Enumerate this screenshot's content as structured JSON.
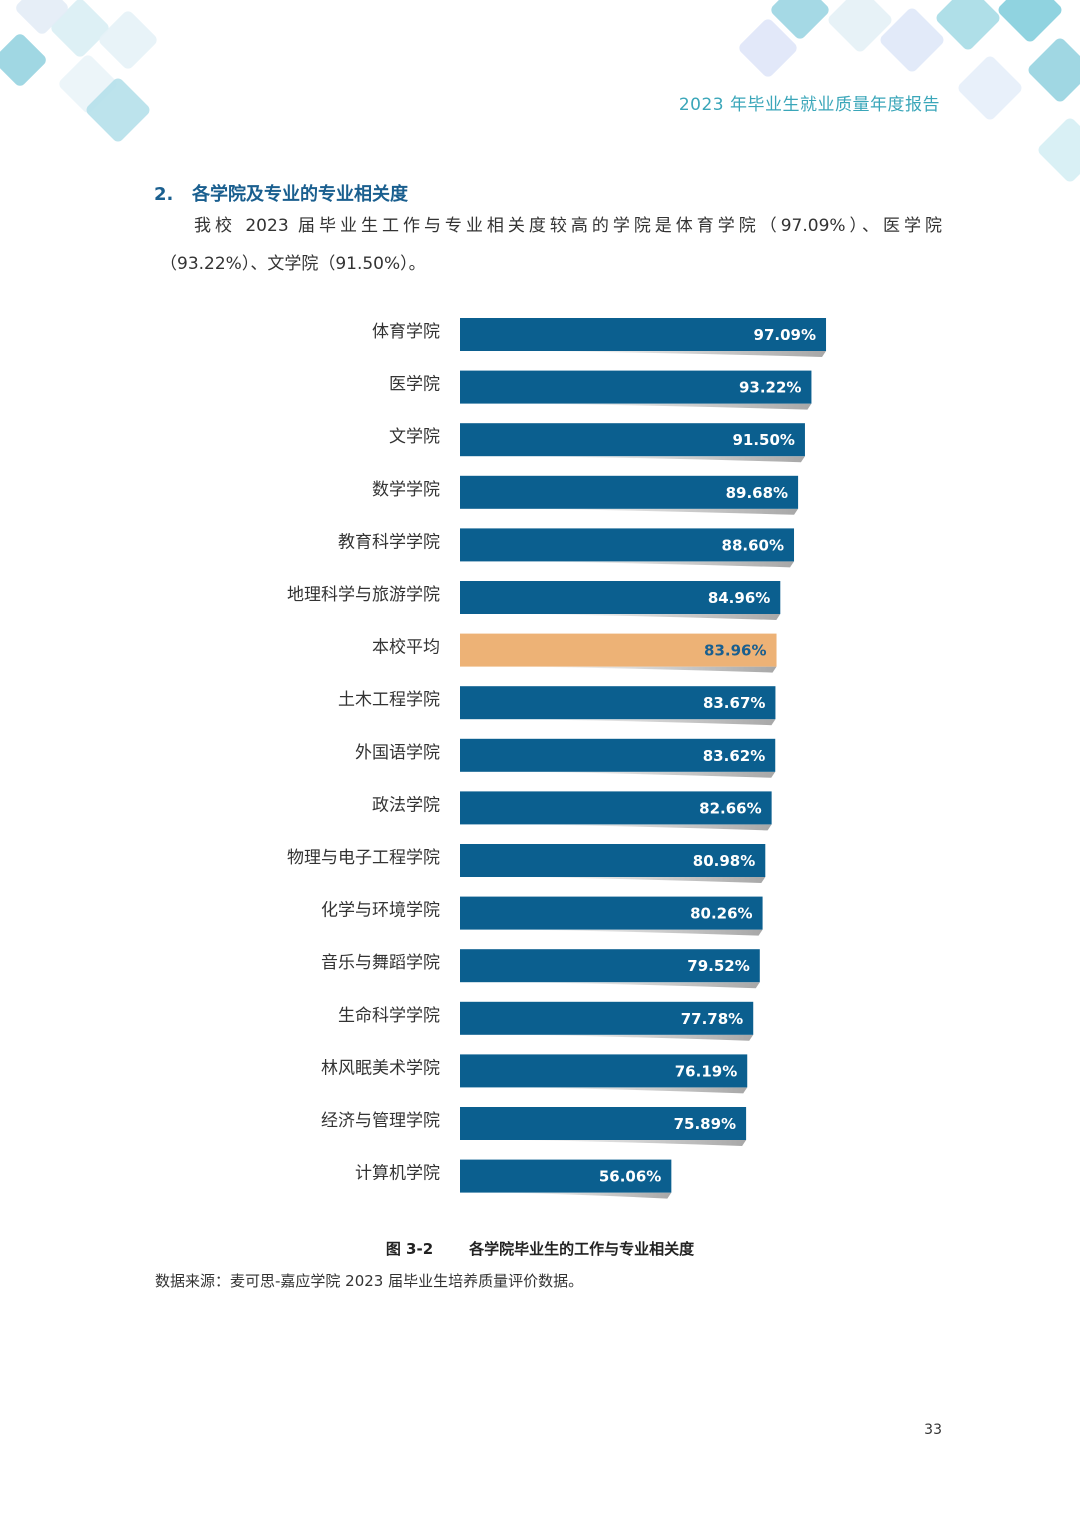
{
  "header": {
    "title": "2023 年毕业生就业质量年度报告"
  },
  "section": {
    "number": "2.",
    "heading": "各学院及专业的专业相关度",
    "paragraph_line1": "我校 2023 届毕业生工作与专业相关度较高的学院是体育学院（97.09%）、医学院",
    "paragraph_line2": "（93.22%）、文学院（91.50%）。"
  },
  "chart_data": {
    "type": "bar",
    "orientation": "horizontal",
    "categories": [
      "体育学院",
      "医学院",
      "文学院",
      "数学学院",
      "教育科学学院",
      "地理科学与旅游学院",
      "本校平均",
      "土木工程学院",
      "外国语学院",
      "政法学院",
      "物理与电子工程学院",
      "化学与环境学院",
      "音乐与舞蹈学院",
      "生命科学学院",
      "林风眠美术学院",
      "经济与管理学院",
      "计算机学院"
    ],
    "values": [
      97.09,
      93.22,
      91.5,
      89.68,
      88.6,
      84.96,
      83.96,
      83.67,
      83.62,
      82.66,
      80.98,
      80.26,
      79.52,
      77.78,
      76.19,
      75.89,
      56.06
    ],
    "value_labels": [
      "97.09%",
      "93.22%",
      "91.50%",
      "89.68%",
      "88.60%",
      "84.96%",
      "83.96%",
      "83.67%",
      "83.62%",
      "82.66%",
      "80.98%",
      "80.26%",
      "79.52%",
      "77.78%",
      "76.19%",
      "75.89%",
      "56.06%"
    ],
    "unit": "%",
    "highlight_category": "本校平均",
    "colors": {
      "bar": "#0b5f8f",
      "highlight": "#edb276",
      "label": "#ffffff",
      "highlight_label": "#1a5f8f",
      "shadow": "#8a8a8a"
    },
    "grid": false,
    "legend": "none"
  },
  "figure": {
    "number": "图 3-2",
    "title": "各学院毕业生的工作与专业相关度",
    "source": "数据来源：麦可思-嘉应学院 2023 届毕业生培养质量评价数据。"
  },
  "page": {
    "number": "33"
  }
}
